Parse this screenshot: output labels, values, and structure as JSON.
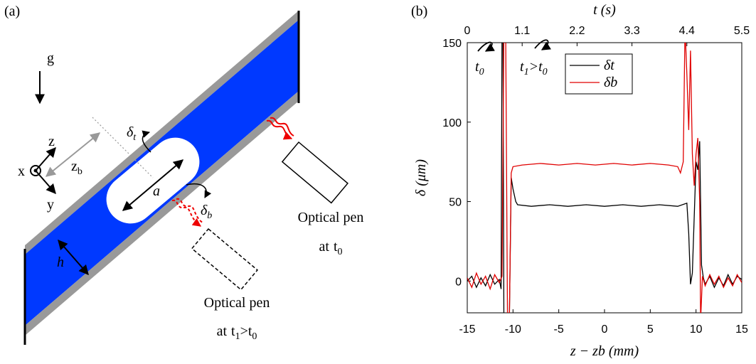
{
  "panel_a": {
    "label": "(a)",
    "gravity": "g",
    "axis_z": "z",
    "axis_x": "x",
    "axis_y": "y",
    "zb": [
      {
        "text": "z",
        "sub": "b"
      }
    ],
    "delta_t": [
      {
        "text": "δ",
        "sub": "t"
      }
    ],
    "bubble_length": "a",
    "height": "h",
    "delta_b": [
      {
        "text": "δ",
        "sub": "b"
      }
    ],
    "pen_t0": {
      "line1": "Optical pen",
      "line2": [
        {
          "text": "at"
        },
        {
          "text": "t",
          "sub": "0"
        }
      ]
    },
    "pen_t1": {
      "line1": "Optical pen",
      "line2": [
        {
          "text": "at"
        },
        {
          "text": "t",
          "sub": "1"
        },
        {
          "text": ">"
        },
        {
          "text": "t",
          "sub": "0"
        }
      ]
    }
  },
  "chart_data": {
    "type": "line",
    "panel_label": "(b)",
    "xlabel": "z − zb (mm)",
    "ylabel": "δ (μm)",
    "x2label": "t (s)",
    "xlim": [
      -15,
      15
    ],
    "xticks": [
      -15,
      -10,
      -5,
      0,
      5,
      10,
      15
    ],
    "ylim": [
      -20,
      150
    ],
    "yticks": [
      0,
      50,
      100,
      150
    ],
    "x2lim": [
      0,
      5.5
    ],
    "x2ticks": [
      0,
      1.1,
      2.2,
      3.3,
      4.4,
      5.5
    ],
    "legend": "upper center",
    "annotations": [
      [
        {
          "text": "t",
          "sub": "0"
        }
      ],
      [
        {
          "text": "t",
          "sub": "1"
        },
        {
          "text": ">"
        },
        {
          "text": "t",
          "sub": "0"
        }
      ]
    ],
    "series": [
      {
        "name": "δt",
        "color": "#000000",
        "x": [
          -15,
          -14.5,
          -14,
          -13.5,
          -13,
          -12.5,
          -12,
          -11.5,
          -11.3,
          -11.2,
          -11.1,
          -11,
          -10.6,
          -10.4,
          -10.2,
          -10,
          -9.7,
          -9.5,
          -8,
          -6,
          -4,
          -2,
          0,
          2,
          4,
          6,
          8,
          9,
          9.2,
          9.4,
          9.6,
          9.8,
          10,
          10.2,
          10.4,
          10.6,
          10.8,
          11,
          11.5,
          12,
          12.5,
          13,
          13.5,
          14,
          14.5,
          15
        ],
        "values": [
          0,
          3,
          -4,
          2,
          -3,
          4,
          -2,
          1,
          -5,
          160,
          160,
          -25,
          -25,
          -25,
          65,
          58,
          50,
          48,
          47,
          48,
          47,
          48,
          47,
          48,
          47,
          48,
          47,
          49,
          30,
          -2,
          5,
          40,
          75,
          70,
          88,
          10,
          2,
          -2,
          3,
          -4,
          2,
          -3,
          4,
          -2,
          3,
          1
        ]
      },
      {
        "name": "δb",
        "color": "#e00000",
        "x": [
          -15,
          -14.5,
          -14,
          -13.5,
          -13,
          -12.5,
          -12,
          -11.5,
          -11.2,
          -11,
          -10.8,
          -10.6,
          -10.4,
          -10.2,
          -10,
          -9,
          -7,
          -5,
          -3,
          -1,
          1,
          3,
          5,
          7,
          8,
          8.3,
          8.6,
          8.8,
          9,
          9.2,
          9.4,
          9.6,
          9.8,
          10,
          10.2,
          10.4,
          10.5,
          10.7,
          11,
          11.5,
          12,
          12.5,
          13,
          13.5,
          14,
          14.5,
          15
        ],
        "values": [
          2,
          -4,
          5,
          -2,
          3,
          -5,
          4,
          -1,
          3,
          160,
          160,
          -25,
          -25,
          68,
          72,
          73,
          74,
          73,
          74,
          73,
          74,
          73,
          74,
          73,
          72,
          68,
          75,
          160,
          130,
          95,
          145,
          80,
          60,
          80,
          90,
          50,
          -25,
          3,
          -3,
          4,
          -2,
          3,
          -4,
          2,
          -3,
          4,
          -1
        ]
      }
    ]
  }
}
